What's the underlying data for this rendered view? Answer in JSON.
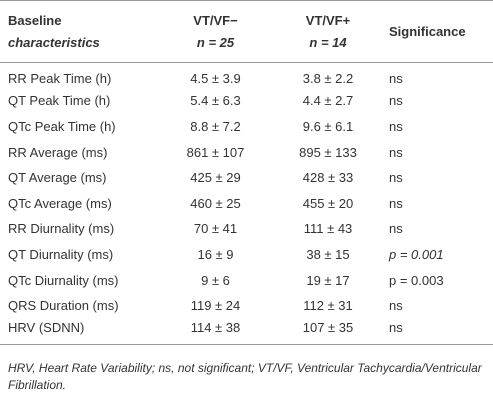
{
  "table": {
    "header": [
      [
        "Baseline",
        "characteristics"
      ],
      [
        "VT/VF−",
        "n = 25"
      ],
      [
        "VT/VF+",
        "n = 14"
      ],
      [
        "Significance"
      ]
    ],
    "rows": [
      [
        "RR Peak Time (h)",
        "4.5 ± 3.9",
        "3.8 ± 2.2",
        "ns"
      ],
      [
        "QT Peak Time (h)",
        "5.4 ± 6.3",
        "4.4 ± 2.7",
        "ns"
      ],
      [
        "QTc Peak Time (h)",
        "8.8 ± 7.2",
        "9.6 ± 6.1",
        "ns"
      ],
      [
        "RR Average (ms)",
        "861 ± 107",
        "895 ± 133",
        "ns"
      ],
      [
        "QT Average (ms)",
        "425 ± 29",
        "428 ± 33",
        "ns"
      ],
      [
        "QTc Average (ms)",
        "460 ± 25",
        "455 ± 20",
        "ns"
      ],
      [
        "RR Diurnality (ms)",
        "70 ± 41",
        "111 ± 43",
        "ns"
      ],
      [
        "QT Diurnality (ms)",
        "16 ± 9",
        "38 ± 15",
        "p = 0.001"
      ],
      [
        "QTc Diurnality (ms)",
        "9 ± 6",
        "19 ± 17",
        "p = 0.003"
      ],
      [
        "QRS Duration (ms)",
        "119 ± 24",
        "112 ± 31",
        "ns"
      ],
      [
        "HRV (SDNN)",
        "114 ± 38",
        "107 ± 35",
        "ns"
      ]
    ],
    "footnote": "HRV, Heart Rate Variability; ns, not significant; VT/VF, Ventricular Tachycardia/Ventricular Fibrillation."
  }
}
